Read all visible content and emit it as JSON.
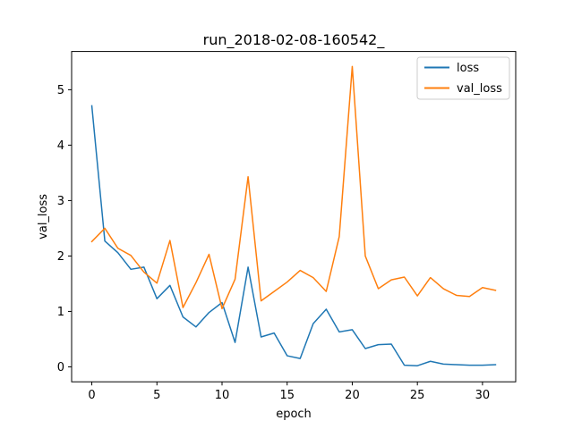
{
  "chart_data": {
    "type": "line",
    "title": "run_2018-02-08-160542_",
    "xlabel": "epoch",
    "ylabel": "val_loss",
    "xlim": [
      -1.55,
      32.55
    ],
    "ylim": [
      -0.27,
      5.69
    ],
    "xticks": [
      0,
      5,
      10,
      15,
      20,
      25,
      30
    ],
    "yticks": [
      0,
      1,
      2,
      3,
      4,
      5
    ],
    "grid": false,
    "legend_position": "upper right",
    "x": [
      0,
      1,
      2,
      3,
      4,
      5,
      6,
      7,
      8,
      9,
      10,
      11,
      12,
      13,
      14,
      15,
      16,
      17,
      18,
      19,
      20,
      21,
      22,
      23,
      24,
      25,
      26,
      27,
      28,
      29,
      30,
      31
    ],
    "series": [
      {
        "name": "loss",
        "color": "#1f77b4",
        "values": [
          4.71,
          2.27,
          2.06,
          1.76,
          1.8,
          1.23,
          1.47,
          0.9,
          0.72,
          0.98,
          1.16,
          0.44,
          1.8,
          0.54,
          0.61,
          0.2,
          0.15,
          0.78,
          1.04,
          0.63,
          0.67,
          0.33,
          0.4,
          0.41,
          0.03,
          0.02,
          0.1,
          0.05,
          0.04,
          0.03,
          0.03,
          0.04
        ]
      },
      {
        "name": "val_loss",
        "color": "#ff7f0e",
        "values": [
          2.26,
          2.5,
          2.14,
          2.01,
          1.71,
          1.51,
          2.28,
          1.07,
          1.52,
          2.03,
          1.05,
          1.58,
          3.43,
          1.19,
          1.36,
          1.53,
          1.74,
          1.61,
          1.36,
          2.35,
          5.42,
          2.0,
          1.41,
          1.57,
          1.62,
          1.28,
          1.61,
          1.41,
          1.29,
          1.27,
          1.43,
          1.38
        ]
      }
    ]
  }
}
